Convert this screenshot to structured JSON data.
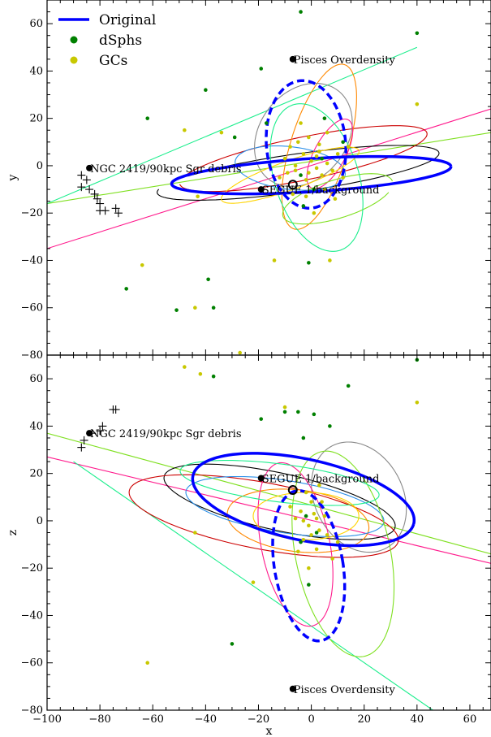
{
  "chart_data": [
    {
      "type": "line",
      "panel": "top",
      "xlabel": "",
      "ylabel": "y",
      "xlim": [
        -100,
        68
      ],
      "ylim": [
        -80,
        70
      ],
      "yticks": [
        -80,
        -60,
        -40,
        -20,
        0,
        20,
        40,
        60
      ],
      "legend": {
        "placement": "top-left",
        "entries": [
          {
            "label": "Original",
            "kind": "line",
            "color": "#0000ff"
          },
          {
            "label": "dSphs",
            "kind": "dot",
            "color": "#008000"
          },
          {
            "label": "GCs",
            "kind": "dot",
            "color": "#c8c800"
          }
        ]
      },
      "annotations": [
        {
          "text": "Pisces Overdensity",
          "x": -7,
          "y": 45
        },
        {
          "text": "NGC 2419/90kpc Sgr debris",
          "x": -84,
          "y": -1
        },
        {
          "text": "SEGUE 1/background",
          "x": -19,
          "y": -10
        }
      ],
      "markers": [
        {
          "x": -7,
          "y": 45,
          "style": "filled"
        },
        {
          "x": -84,
          "y": -1,
          "style": "filled"
        },
        {
          "x": -19,
          "y": -10,
          "style": "filled"
        },
        {
          "x": -7,
          "y": -8,
          "style": "ring"
        }
      ],
      "crosses": [
        [
          -87,
          -4
        ],
        [
          -85,
          -6
        ],
        [
          -87,
          -9
        ],
        [
          -84,
          -10
        ],
        [
          -82,
          -12
        ],
        [
          -81,
          -14
        ],
        [
          -80,
          -16
        ],
        [
          -80,
          -19
        ],
        [
          -78,
          -19
        ],
        [
          -74,
          -18
        ],
        [
          -73,
          -20
        ]
      ],
      "dsphs": [
        [
          -4,
          65
        ],
        [
          40,
          56
        ],
        [
          -62,
          20
        ],
        [
          -40,
          32
        ],
        [
          -19,
          41
        ],
        [
          -17,
          18
        ],
        [
          -29,
          12
        ],
        [
          12,
          10
        ],
        [
          5,
          20
        ],
        [
          -3,
          -17
        ],
        [
          -1,
          -41
        ],
        [
          -39,
          -48
        ],
        [
          -70,
          -52
        ],
        [
          -37,
          -60
        ],
        [
          -51,
          -61
        ],
        [
          -4,
          -4
        ],
        [
          1,
          -10
        ],
        [
          4,
          3
        ]
      ],
      "gcs": [
        [
          40,
          26
        ],
        [
          -48,
          15
        ],
        [
          -34,
          14
        ],
        [
          -64,
          -42
        ],
        [
          -44,
          -60
        ],
        [
          -27,
          -79
        ],
        [
          -14,
          -40
        ],
        [
          7,
          -40
        ],
        [
          -43,
          -13
        ],
        [
          -10,
          3
        ],
        [
          -8,
          8
        ],
        [
          -6,
          -2
        ],
        [
          -3,
          5
        ],
        [
          -2,
          -6
        ],
        [
          0,
          2
        ],
        [
          2,
          -1
        ],
        [
          3,
          6
        ],
        [
          4,
          -4
        ],
        [
          6,
          1
        ],
        [
          8,
          -2
        ],
        [
          -5,
          10
        ],
        [
          -1,
          12
        ],
        [
          10,
          5
        ],
        [
          -9,
          -3
        ],
        [
          -2,
          -13
        ],
        [
          5,
          -10
        ],
        [
          12,
          -5
        ],
        [
          -4,
          18
        ],
        [
          6,
          14
        ],
        [
          14,
          8
        ],
        [
          -12,
          -5
        ],
        [
          1,
          -20
        ],
        [
          -7,
          -12
        ],
        [
          9,
          -14
        ],
        [
          3,
          9
        ],
        [
          -6,
          0
        ],
        [
          -1,
          -3
        ],
        [
          2,
          4
        ]
      ],
      "orbits": [
        {
          "color": "#0000ff",
          "width": 3.5,
          "dash": false
        },
        {
          "color": "#0000ff",
          "width": 3.5,
          "dash": true
        },
        {
          "color": "#000000",
          "width": 1.1,
          "dash": false
        },
        {
          "color": "#cc0000",
          "width": 1.1,
          "dash": false
        },
        {
          "color": "#ff8800",
          "width": 1.1,
          "dash": false
        },
        {
          "color": "#2b8fe8",
          "width": 1.1,
          "dash": false
        },
        {
          "color": "#888888",
          "width": 1.1,
          "dash": false
        },
        {
          "color": "#ff1a8c",
          "width": 1.1,
          "dash": false
        },
        {
          "color": "#7fe020",
          "width": 1.1,
          "dash": false
        },
        {
          "color": "#1aee8c",
          "width": 1.1,
          "dash": false
        },
        {
          "color": "#ffd400",
          "width": 1.1,
          "dash": false
        }
      ]
    },
    {
      "type": "line",
      "panel": "bottom",
      "xlabel": "x",
      "ylabel": "z",
      "xlim": [
        -100,
        68
      ],
      "ylim": [
        -80,
        70
      ],
      "xticks": [
        -100,
        -80,
        -60,
        -40,
        -20,
        0,
        20,
        40,
        60
      ],
      "yticks": [
        -80,
        -60,
        -40,
        -20,
        0,
        20,
        40,
        60
      ],
      "annotations": [
        {
          "text": "NGC 2419/90kpc Sgr debris",
          "x": -84,
          "y": 37
        },
        {
          "text": "SEGUE 1/background",
          "x": -19,
          "y": 18
        },
        {
          "text": "Pisces Overdensity",
          "x": -7,
          "y": -71
        }
      ],
      "markers": [
        {
          "x": -84,
          "y": 37,
          "style": "filled"
        },
        {
          "x": -19,
          "y": 18,
          "style": "filled"
        },
        {
          "x": -7,
          "y": -71,
          "style": "filled"
        },
        {
          "x": -7,
          "y": 13,
          "style": "ring"
        }
      ],
      "crosses": [
        [
          -87,
          31
        ],
        [
          -86,
          34
        ],
        [
          -83,
          37
        ],
        [
          -80,
          38
        ],
        [
          -79,
          40
        ],
        [
          -75,
          47
        ],
        [
          -74,
          47
        ]
      ],
      "dsphs": [
        [
          40,
          68
        ],
        [
          -37,
          61
        ],
        [
          -19,
          43
        ],
        [
          -10,
          46
        ],
        [
          -5,
          46
        ],
        [
          1,
          45
        ],
        [
          -3,
          35
        ],
        [
          7,
          40
        ],
        [
          14,
          57
        ],
        [
          -30,
          -52
        ],
        [
          -1,
          -27
        ],
        [
          -4,
          -9
        ],
        [
          -2,
          2
        ],
        [
          2,
          -5
        ]
      ],
      "gcs": [
        [
          -48,
          65
        ],
        [
          -42,
          62
        ],
        [
          -10,
          48
        ],
        [
          40,
          50
        ],
        [
          -62,
          -60
        ],
        [
          -22,
          -26
        ],
        [
          -44,
          -5
        ],
        [
          -4,
          4
        ],
        [
          -1,
          -2
        ],
        [
          1,
          3
        ],
        [
          3,
          -4
        ],
        [
          -3,
          -8
        ],
        [
          5,
          2
        ],
        [
          -6,
          1
        ],
        [
          0,
          8
        ],
        [
          2,
          -12
        ],
        [
          6,
          -6
        ],
        [
          -2,
          12
        ],
        [
          4,
          8
        ],
        [
          -5,
          -13
        ],
        [
          8,
          -16
        ],
        [
          -1,
          -20
        ],
        [
          10,
          -9
        ],
        [
          3,
          15
        ],
        [
          -8,
          6
        ],
        [
          0,
          -6
        ],
        [
          2,
          1
        ],
        [
          -3,
          0
        ]
      ],
      "orbits": [
        {
          "color": "#0000ff",
          "width": 3.5,
          "dash": false
        },
        {
          "color": "#0000ff",
          "width": 3.5,
          "dash": true
        },
        {
          "color": "#000000",
          "width": 1.1,
          "dash": false
        },
        {
          "color": "#cc0000",
          "width": 1.1,
          "dash": false
        },
        {
          "color": "#ff8800",
          "width": 1.1,
          "dash": false
        },
        {
          "color": "#2b8fe8",
          "width": 1.1,
          "dash": false
        },
        {
          "color": "#888888",
          "width": 1.1,
          "dash": false
        },
        {
          "color": "#ff1a8c",
          "width": 1.1,
          "dash": false
        },
        {
          "color": "#7fe020",
          "width": 1.1,
          "dash": false
        },
        {
          "color": "#1aee8c",
          "width": 1.1,
          "dash": false
        },
        {
          "color": "#ffd400",
          "width": 1.1,
          "dash": false
        }
      ]
    }
  ]
}
